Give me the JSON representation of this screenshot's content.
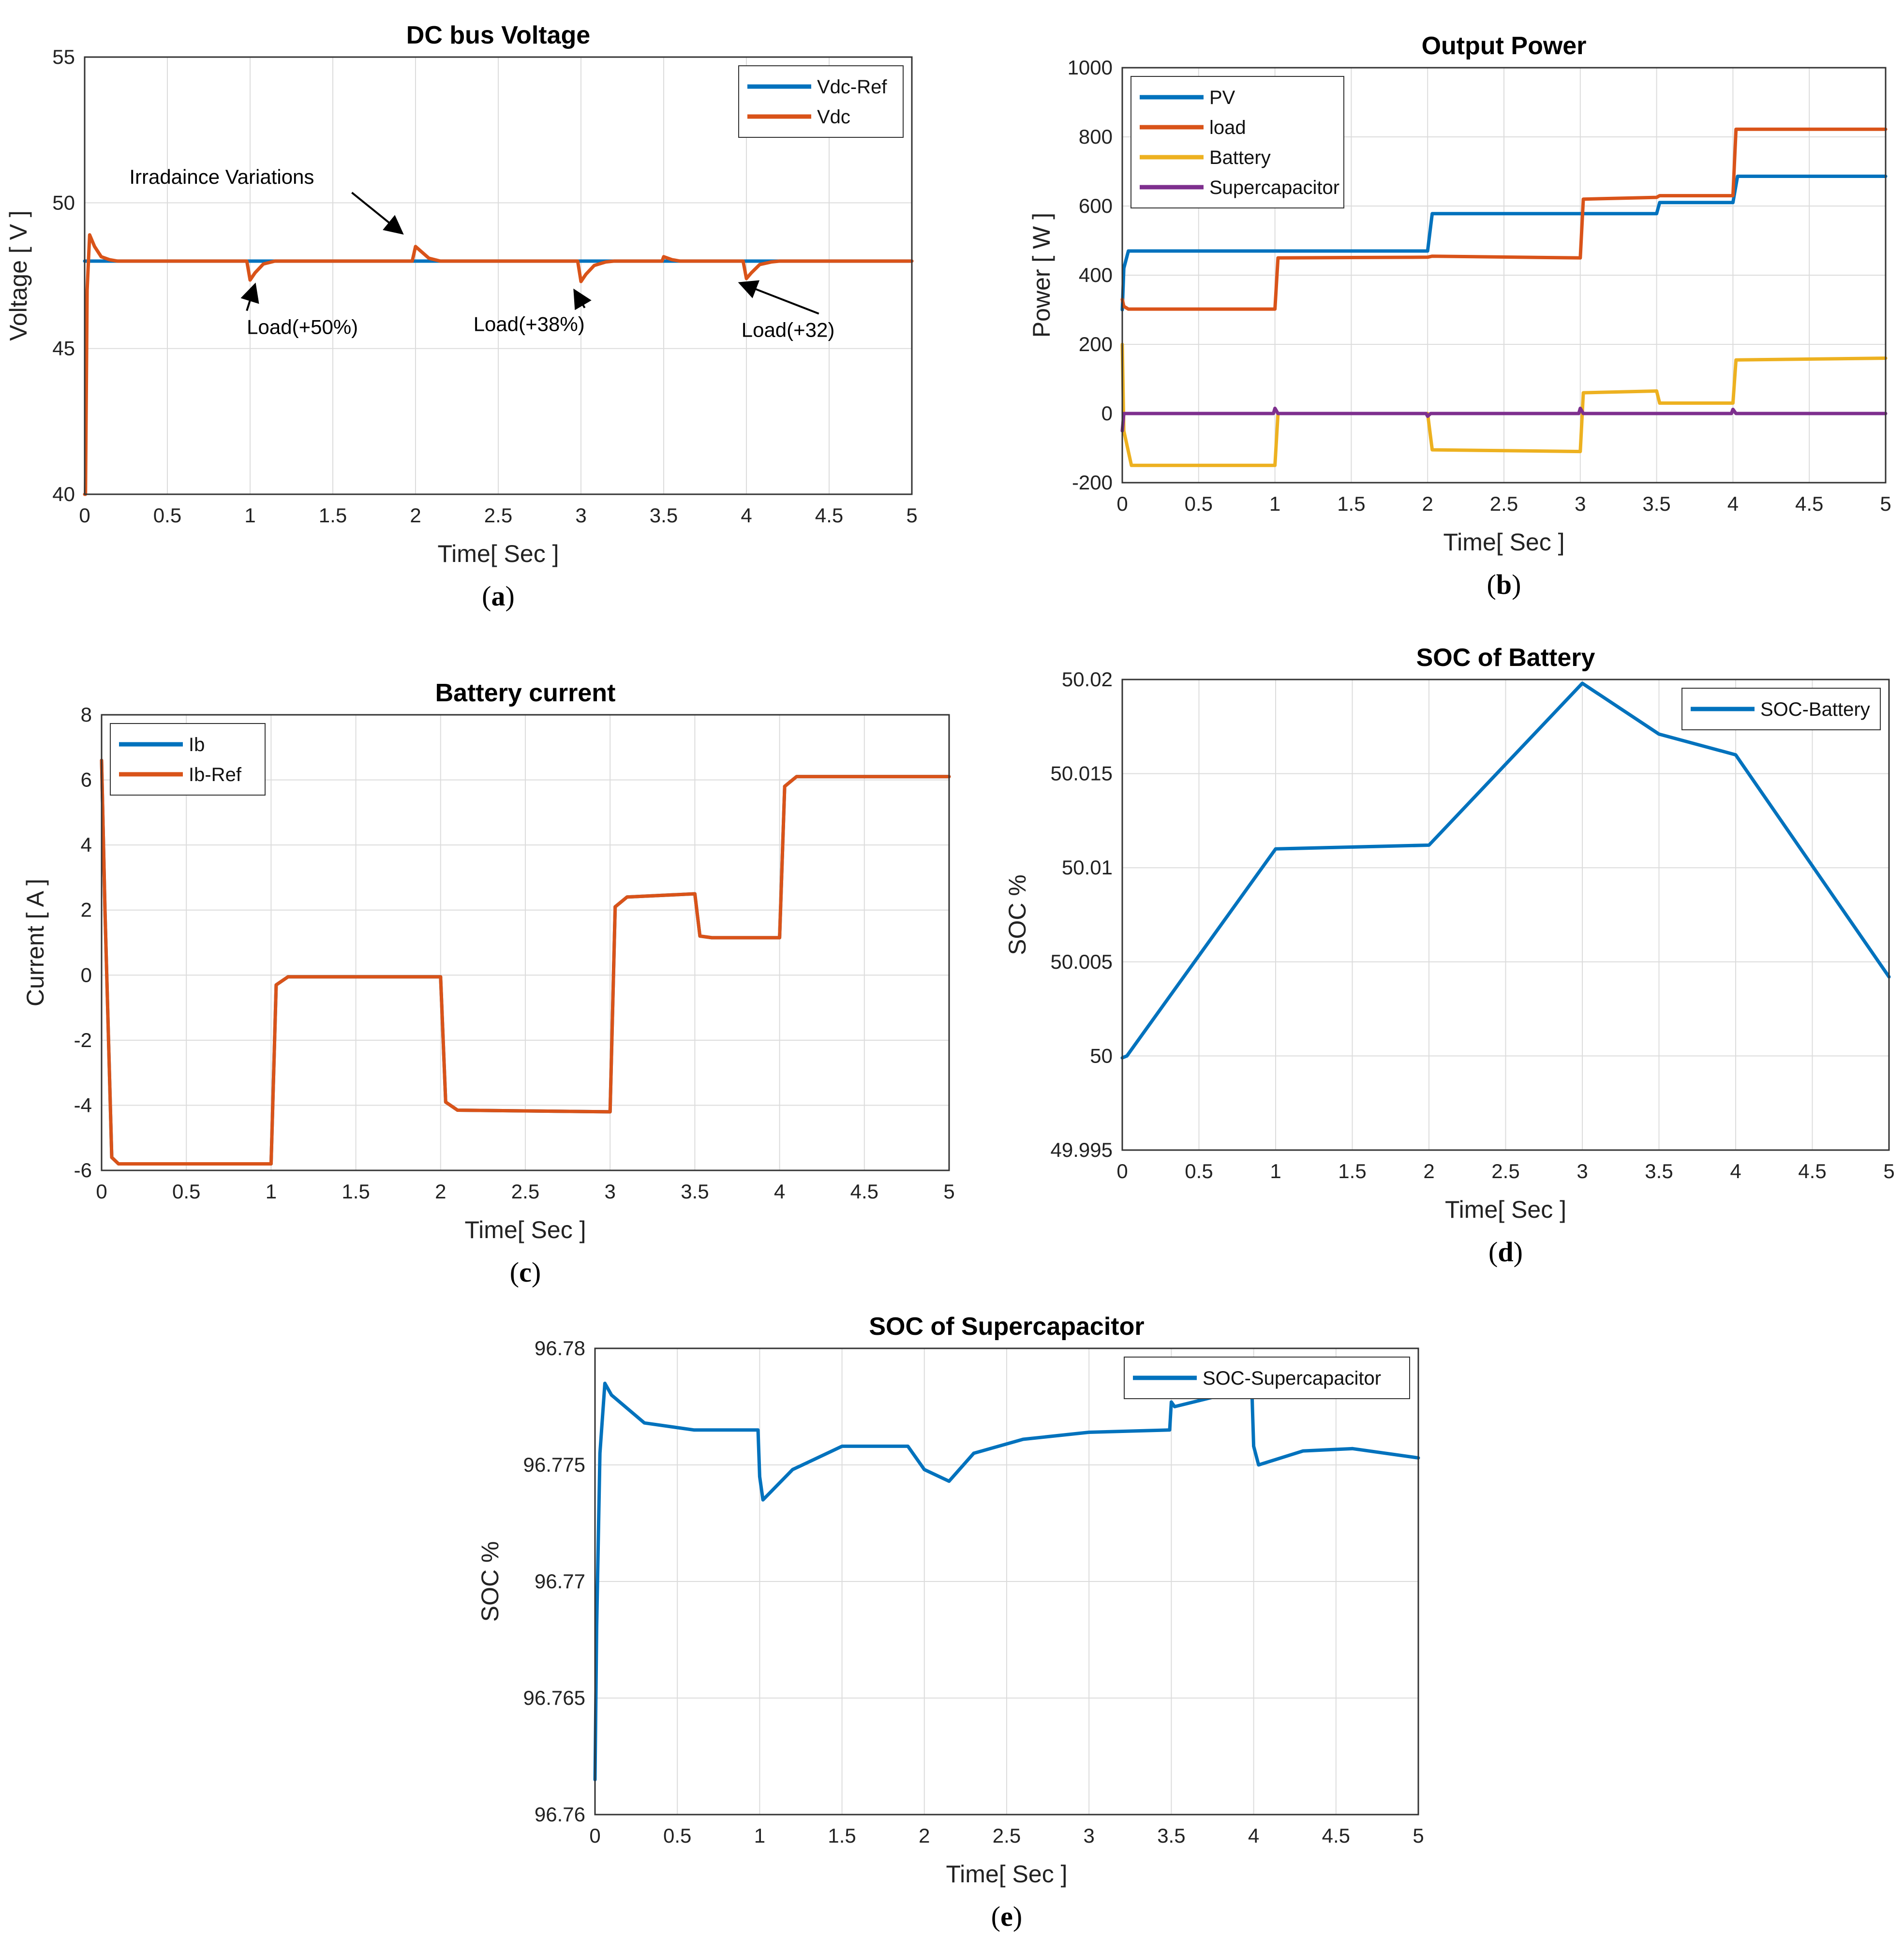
{
  "colors": {
    "blue": "#0072BD",
    "orange": "#D95319",
    "yellow": "#EDB120",
    "purple": "#7E2F8E"
  },
  "chart_data": [
    {
      "type": "line",
      "caption": "a",
      "title": "DC bus Voltage",
      "xlabel": "Time[ Sec ]",
      "ylabel": "Voltage [ V ]",
      "xlim": [
        0,
        5
      ],
      "ylim": [
        40,
        55
      ],
      "xticks": [
        0,
        0.5,
        1,
        1.5,
        2,
        2.5,
        3,
        3.5,
        4,
        4.5,
        5
      ],
      "xtick_labels": [
        "0",
        "0.5",
        "1",
        "1.5",
        "2",
        "2.5",
        "3",
        "3.5",
        "4",
        "4.5",
        "5"
      ],
      "yticks": [
        40,
        45,
        50,
        55
      ],
      "ytick_labels": [
        "40",
        "45",
        "50",
        "55"
      ],
      "grid": true,
      "legend_position": "top-right",
      "series": [
        {
          "name": "Vdc-Ref",
          "color": "#0072BD",
          "x": [
            0,
            5
          ],
          "y": [
            48,
            48
          ]
        },
        {
          "name": "Vdc",
          "color": "#D95319",
          "x": [
            0,
            0.005,
            0.015,
            0.03,
            0.06,
            0.1,
            0.15,
            0.2,
            0.98,
            1.0,
            1.03,
            1.08,
            1.15,
            1.2,
            1.98,
            2.0,
            2.03,
            2.08,
            2.15,
            2.98,
            3.0,
            3.03,
            3.08,
            3.15,
            3.2,
            3.49,
            3.5,
            3.55,
            3.6,
            3.98,
            4.0,
            4.03,
            4.08,
            4.15,
            4.2,
            5.0
          ],
          "y": [
            40,
            40,
            47.0,
            48.9,
            48.5,
            48.15,
            48.05,
            48,
            48,
            47.35,
            47.6,
            47.9,
            48.0,
            48,
            48,
            48.5,
            48.35,
            48.1,
            48,
            48,
            47.3,
            47.55,
            47.85,
            47.97,
            48,
            48,
            48.15,
            48.05,
            48,
            48,
            47.4,
            47.6,
            47.88,
            47.97,
            48,
            48
          ]
        }
      ],
      "annotations": [
        {
          "text": "Irradaince Variations",
          "text_at": [
            0.27,
            50.65
          ],
          "arrow_to": [
            1.92,
            48.95
          ]
        },
        {
          "text": "Load(+50%)",
          "text_at": [
            0.98,
            45.5
          ],
          "arrow_to": [
            1.03,
            47.2
          ]
        },
        {
          "text": "Load(+38%)",
          "text_at": [
            2.35,
            45.6
          ],
          "arrow_to": [
            2.96,
            47.0
          ]
        },
        {
          "text": "Load(+32)",
          "text_at": [
            3.97,
            45.4
          ],
          "arrow_to": [
            3.96,
            47.25
          ]
        }
      ]
    },
    {
      "type": "line",
      "caption": "b",
      "title": "Output Power",
      "xlabel": "Time[ Sec ]",
      "ylabel": "Power [ W ]",
      "xlim": [
        0,
        5
      ],
      "ylim": [
        -200,
        1000
      ],
      "xticks": [
        0,
        0.5,
        1,
        1.5,
        2,
        2.5,
        3,
        3.5,
        4,
        4.5,
        5
      ],
      "xtick_labels": [
        "0",
        "0.5",
        "1",
        "1.5",
        "2",
        "2.5",
        "3",
        "3.5",
        "4",
        "4.5",
        "5"
      ],
      "yticks": [
        -200,
        0,
        200,
        400,
        600,
        800,
        1000
      ],
      "ytick_labels": [
        "-200",
        "0",
        "200",
        "400",
        "600",
        "800",
        "1000"
      ],
      "grid": true,
      "legend_position": "top-left",
      "series": [
        {
          "name": "PV",
          "color": "#0072BD",
          "x": [
            0,
            0.01,
            0.04,
            2.0,
            2.03,
            3.5,
            3.52,
            4.0,
            4.03,
            5.0
          ],
          "y": [
            300,
            420,
            470,
            470,
            578,
            578,
            610,
            610,
            686,
            686
          ]
        },
        {
          "name": "load",
          "color": "#D95319",
          "x": [
            0,
            0.01,
            0.04,
            1.0,
            1.02,
            2.0,
            2.03,
            3.0,
            3.02,
            3.5,
            3.52,
            4.0,
            4.02,
            5.0
          ],
          "y": [
            330,
            310,
            302,
            302,
            450,
            452,
            455,
            450,
            620,
            625,
            630,
            630,
            822,
            822
          ]
        },
        {
          "name": "Battery",
          "color": "#EDB120",
          "x": [
            0,
            0.01,
            0.06,
            1.0,
            1.02,
            2.0,
            2.03,
            3.0,
            3.02,
            3.5,
            3.52,
            4.0,
            4.02,
            5.0
          ],
          "y": [
            200,
            -50,
            -150,
            -150,
            0,
            0,
            -105,
            -110,
            60,
            65,
            30,
            30,
            155,
            160
          ]
        },
        {
          "name": "Supercapacitor",
          "color": "#7E2F8E",
          "x": [
            0,
            0.01,
            0.05,
            0.99,
            1.0,
            1.02,
            1.99,
            2.0,
            2.02,
            2.99,
            3.0,
            3.02,
            3.99,
            4.0,
            4.02,
            5.0
          ],
          "y": [
            -50,
            0,
            0,
            0,
            15,
            0,
            0,
            -8,
            0,
            0,
            15,
            0,
            0,
            12,
            0,
            0
          ]
        }
      ]
    },
    {
      "type": "line",
      "caption": "c",
      "title": "Battery current",
      "xlabel": "Time[ Sec ]",
      "ylabel": "Current [ A ]",
      "xlim": [
        0,
        5
      ],
      "ylim": [
        -6,
        8
      ],
      "xticks": [
        0,
        0.5,
        1,
        1.5,
        2,
        2.5,
        3,
        3.5,
        4,
        4.5,
        5
      ],
      "xtick_labels": [
        "0",
        "0.5",
        "1",
        "1.5",
        "2",
        "2.5",
        "3",
        "3.5",
        "4",
        "4.5",
        "5"
      ],
      "yticks": [
        -6,
        -4,
        -2,
        0,
        2,
        4,
        6,
        8
      ],
      "ytick_labels": [
        "-6",
        "-4",
        "-2",
        "0",
        "2",
        "4",
        "6",
        "8"
      ],
      "grid": true,
      "legend_position": "top-left",
      "series": [
        {
          "name": "Ib",
          "color": "#0072BD",
          "x": [
            0,
            0.02,
            0.06,
            0.1,
            1.0,
            1.03,
            1.1,
            2.0,
            2.03,
            2.1,
            3.0,
            3.03,
            3.1,
            3.5,
            3.53,
            3.6,
            4.0,
            4.03,
            4.1,
            5.0
          ],
          "y": [
            6.6,
            2.0,
            -5.6,
            -5.8,
            -5.8,
            -0.3,
            -0.05,
            -0.05,
            -3.9,
            -4.15,
            -4.2,
            2.1,
            2.4,
            2.5,
            1.2,
            1.15,
            1.15,
            5.8,
            6.1,
            6.1
          ]
        },
        {
          "name": "Ib-Ref",
          "color": "#D95319",
          "x": [
            0,
            0.02,
            0.06,
            0.1,
            1.0,
            1.03,
            1.1,
            2.0,
            2.03,
            2.1,
            3.0,
            3.03,
            3.1,
            3.5,
            3.53,
            3.6,
            4.0,
            4.03,
            4.1,
            5.0
          ],
          "y": [
            6.6,
            2.0,
            -5.6,
            -5.8,
            -5.8,
            -0.3,
            -0.05,
            -0.05,
            -3.9,
            -4.15,
            -4.2,
            2.1,
            2.4,
            2.5,
            1.2,
            1.15,
            1.15,
            5.8,
            6.1,
            6.1
          ]
        }
      ]
    },
    {
      "type": "line",
      "caption": "d",
      "title": "SOC of Battery",
      "xlabel": "Time[ Sec ]",
      "ylabel": "SOC %",
      "xlim": [
        0,
        5
      ],
      "ylim": [
        49.995,
        50.02
      ],
      "xticks": [
        0,
        0.5,
        1,
        1.5,
        2,
        2.5,
        3,
        3.5,
        4,
        4.5,
        5
      ],
      "xtick_labels": [
        "0",
        "0.5",
        "1",
        "1.5",
        "2",
        "2.5",
        "3",
        "3.5",
        "4",
        "4.5",
        "5"
      ],
      "yticks": [
        49.995,
        50,
        50.005,
        50.01,
        50.015,
        50.02
      ],
      "ytick_labels": [
        "49.995",
        "50",
        "50.005",
        "50.01",
        "50.015",
        "50.02"
      ],
      "grid": true,
      "legend_position": "top-right",
      "series": [
        {
          "name": "SOC-Battery",
          "color": "#0072BD",
          "x": [
            0,
            0.03,
            1.0,
            2.0,
            3.0,
            3.5,
            4.0,
            5.0
          ],
          "y": [
            49.9999,
            50.0,
            50.011,
            50.0112,
            50.0198,
            50.0171,
            50.016,
            50.0042
          ]
        }
      ]
    },
    {
      "type": "line",
      "caption": "e",
      "title": "SOC of Supercapacitor",
      "xlabel": "Time[ Sec ]",
      "ylabel": "SOC %",
      "xlim": [
        0,
        5
      ],
      "ylim": [
        96.76,
        96.78
      ],
      "xticks": [
        0,
        0.5,
        1,
        1.5,
        2,
        2.5,
        3,
        3.5,
        4,
        4.5,
        5
      ],
      "xtick_labels": [
        "0",
        "0.5",
        "1",
        "1.5",
        "2",
        "2.5",
        "3",
        "3.5",
        "4",
        "4.5",
        "5"
      ],
      "yticks": [
        96.76,
        96.765,
        96.77,
        96.775,
        96.78
      ],
      "ytick_labels": [
        "96.76",
        "96.765",
        "96.77",
        "96.775",
        "96.78"
      ],
      "grid": true,
      "legend_position": "top-right",
      "series": [
        {
          "name": "SOC-Supercapacitor",
          "color": "#0072BD",
          "x": [
            0,
            0.01,
            0.03,
            0.06,
            0.1,
            0.3,
            0.6,
            0.99,
            1.0,
            1.02,
            1.2,
            1.5,
            1.9,
            2.0,
            2.15,
            2.3,
            2.6,
            3.0,
            3.49,
            3.5,
            3.52,
            3.75,
            3.99,
            4.0,
            4.03,
            4.3,
            4.6,
            5.0
          ],
          "y": [
            96.7615,
            96.768,
            96.7755,
            96.7785,
            96.778,
            96.7768,
            96.7765,
            96.7765,
            96.7745,
            96.7735,
            96.7748,
            96.7758,
            96.7758,
            96.7748,
            96.7743,
            96.7755,
            96.7761,
            96.7764,
            96.7765,
            96.7777,
            96.7775,
            96.7779,
            96.778,
            96.7758,
            96.775,
            96.7756,
            96.7757,
            96.7753
          ]
        }
      ]
    }
  ]
}
